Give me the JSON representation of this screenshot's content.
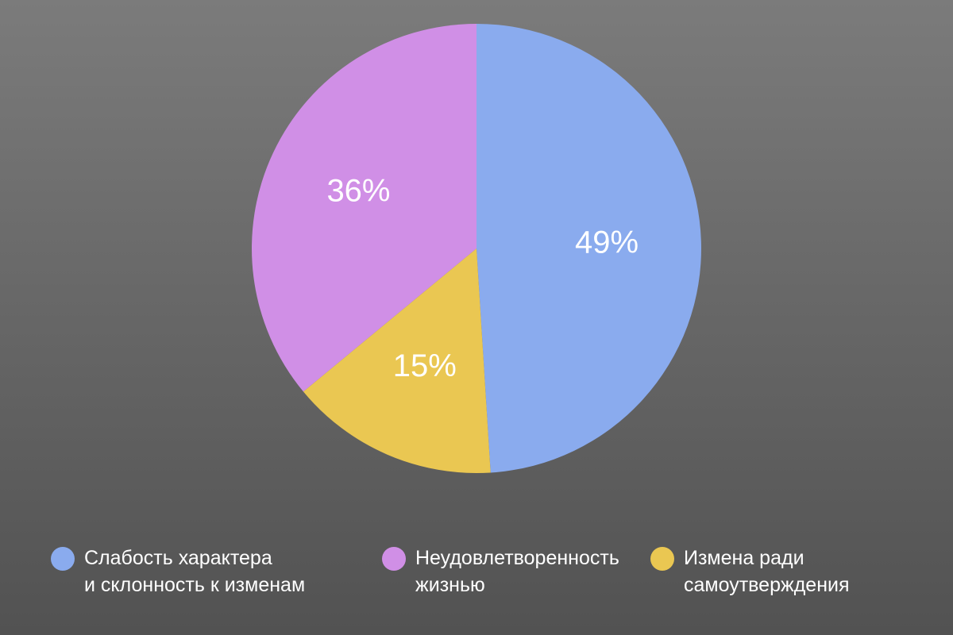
{
  "chart_data": {
    "type": "pie",
    "categories": [
      "Слабость характера\nи склонность к изменам",
      "Измена ради\nсамоутверждения",
      "Неудовлетворенность\nжизнью"
    ],
    "values": [
      49,
      15,
      36
    ],
    "value_labels": [
      "49%",
      "15%",
      "36%"
    ],
    "colors": [
      "#8aabee",
      "#eac752",
      "#d08fe6"
    ],
    "legend_order": [
      0,
      2,
      1
    ]
  }
}
